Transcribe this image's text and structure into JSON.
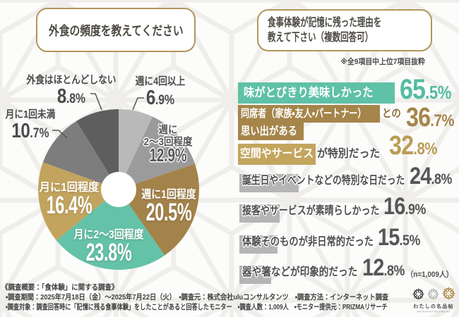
{
  "left_panel": {
    "title": "外食の頻度を教えてください"
  },
  "right_panel": {
    "title_line1": "食事体験が記憶に残った理由を",
    "title_line2": "教えて下さい（複数回答可）",
    "note": "※全9項目中上位7項目抜粋",
    "sample_note": "（n=1,009人）",
    "items": [
      {
        "label": "味がとびきり美味しかった",
        "highlight": "味がとびきり美味しかった",
        "rest": "",
        "pct": "65.5%",
        "pct_int": "65",
        "pct_dec": ".5%",
        "color": "teal"
      },
      {
        "label": "同席者（家族・友人・パートナー）との思い出がある",
        "highlight_line1": "同席者（家族・友人・パートナー）",
        "mid": "との",
        "highlight_line2": "思い出がある",
        "pct": "36.7%",
        "pct_int": "36",
        "pct_dec": ".7%",
        "color": "gold-dark"
      },
      {
        "label": "空間やサービスが特別だった",
        "highlight": "空間やサービス",
        "rest": "が特別だった",
        "pct": "32.8%",
        "pct_int": "32",
        "pct_dec": ".8%",
        "color": "gold-light"
      },
      {
        "label": "誕生日やイベントなどの特別な日だった",
        "pct": "24.8%",
        "pct_int": "24",
        "pct_dec": ".8%",
        "color": "gray"
      },
      {
        "label": "接客やサービスが素晴らしかった",
        "pct": "16.9%",
        "pct_int": "16",
        "pct_dec": ".9%",
        "color": "gray"
      },
      {
        "label": "体験そのものが非日常的だった",
        "pct": "15.5%",
        "pct_int": "15",
        "pct_dec": ".5%",
        "color": "gray"
      },
      {
        "label": "器や箸などが印象的だった",
        "pct": "12.8%",
        "pct_int": "12",
        "pct_dec": ".8%",
        "color": "gray"
      }
    ]
  },
  "chart_data": [
    {
      "type": "pie",
      "title": "外食の頻度を教えてください",
      "subtype": "donut",
      "labels": [
        "週に4回以上",
        "週に2～3回程度",
        "週に1回程度",
        "月に2～3回程度",
        "月に1回程度",
        "月に1回未満",
        "外食はほとんどしない"
      ],
      "values": [
        6.9,
        12.9,
        20.5,
        23.8,
        16.4,
        10.7,
        8.8
      ],
      "colors": [
        "#b9b9b9",
        "#9b9b9b",
        "#a3834a",
        "#63c2a7",
        "#c2a45e",
        "#7d7d7d",
        "#5e5e5e"
      ],
      "unit": "%",
      "start_angle_deg": 0,
      "clockwise": true,
      "center": [
        168,
        269
      ],
      "outer_radius": 114,
      "inner_radius": 25,
      "pct_display": {
        "w4": {
          "int": "6",
          "dec": ".9%"
        },
        "w23": {
          "nm1": "週に",
          "nm2": "2～3回程度",
          "pct": "12.9%"
        },
        "w1": {
          "nm": "週に1回程度",
          "pct": "20.5%"
        },
        "m23": {
          "nm": "月に2～3回程度",
          "pct": "23.8%"
        },
        "m1": {
          "nm": "月に1回程度",
          "pct": "16.4%"
        },
        "lt1": {
          "int": "10",
          "dec": ".7%"
        },
        "none": {
          "int": "8",
          "dec": ".8%"
        }
      }
    },
    {
      "type": "bar",
      "title": "食事体験が記憶に残った理由を教えて下さい（複数回答可）",
      "categories": [
        "味がとびきり美味しかった",
        "同席者（家族・友人・パートナー）との思い出がある",
        "空間やサービスが特別だった",
        "誕生日やイベントなどの特別な日だった",
        "接客やサービスが素晴らしかった",
        "体験そのものが非日常的だった",
        "器や箸などが印象的だった"
      ],
      "values": [
        65.5,
        36.7,
        32.8,
        24.8,
        16.9,
        15.5,
        12.8
      ],
      "unit": "%",
      "n": "1,009"
    }
  ],
  "footer": {
    "line1": "《調査概要：「食体験」に関する調査》",
    "line2": "・調査期間：2025年7月18日（金）～2025年7月22日（火）　・調査元：株式会社uluコンサルタンツ　・調査方法：インターネット調査",
    "line3": "・調査対象：調査回答時に「記憶に残る食事体験」をしたことがあると回答したモニター　・調査人数：1,009人　・モニター提供元：PRIZMAリサーチ"
  },
  "logo": {
    "text": "わたしの名品帖",
    "subtext": "WATASHINO MEIHINCHO",
    "mark_colors": [
      "#1d1d1b",
      "#a9a9a9",
      "#a07a2c"
    ]
  },
  "palette": {
    "teal": "#5fc1a6",
    "gold_dark": "#a5854a",
    "gold_light": "#c3a55e",
    "gray_highlight": "#b5b5b5",
    "border_gold": "#b2955c",
    "background": "#f8f8f6"
  }
}
